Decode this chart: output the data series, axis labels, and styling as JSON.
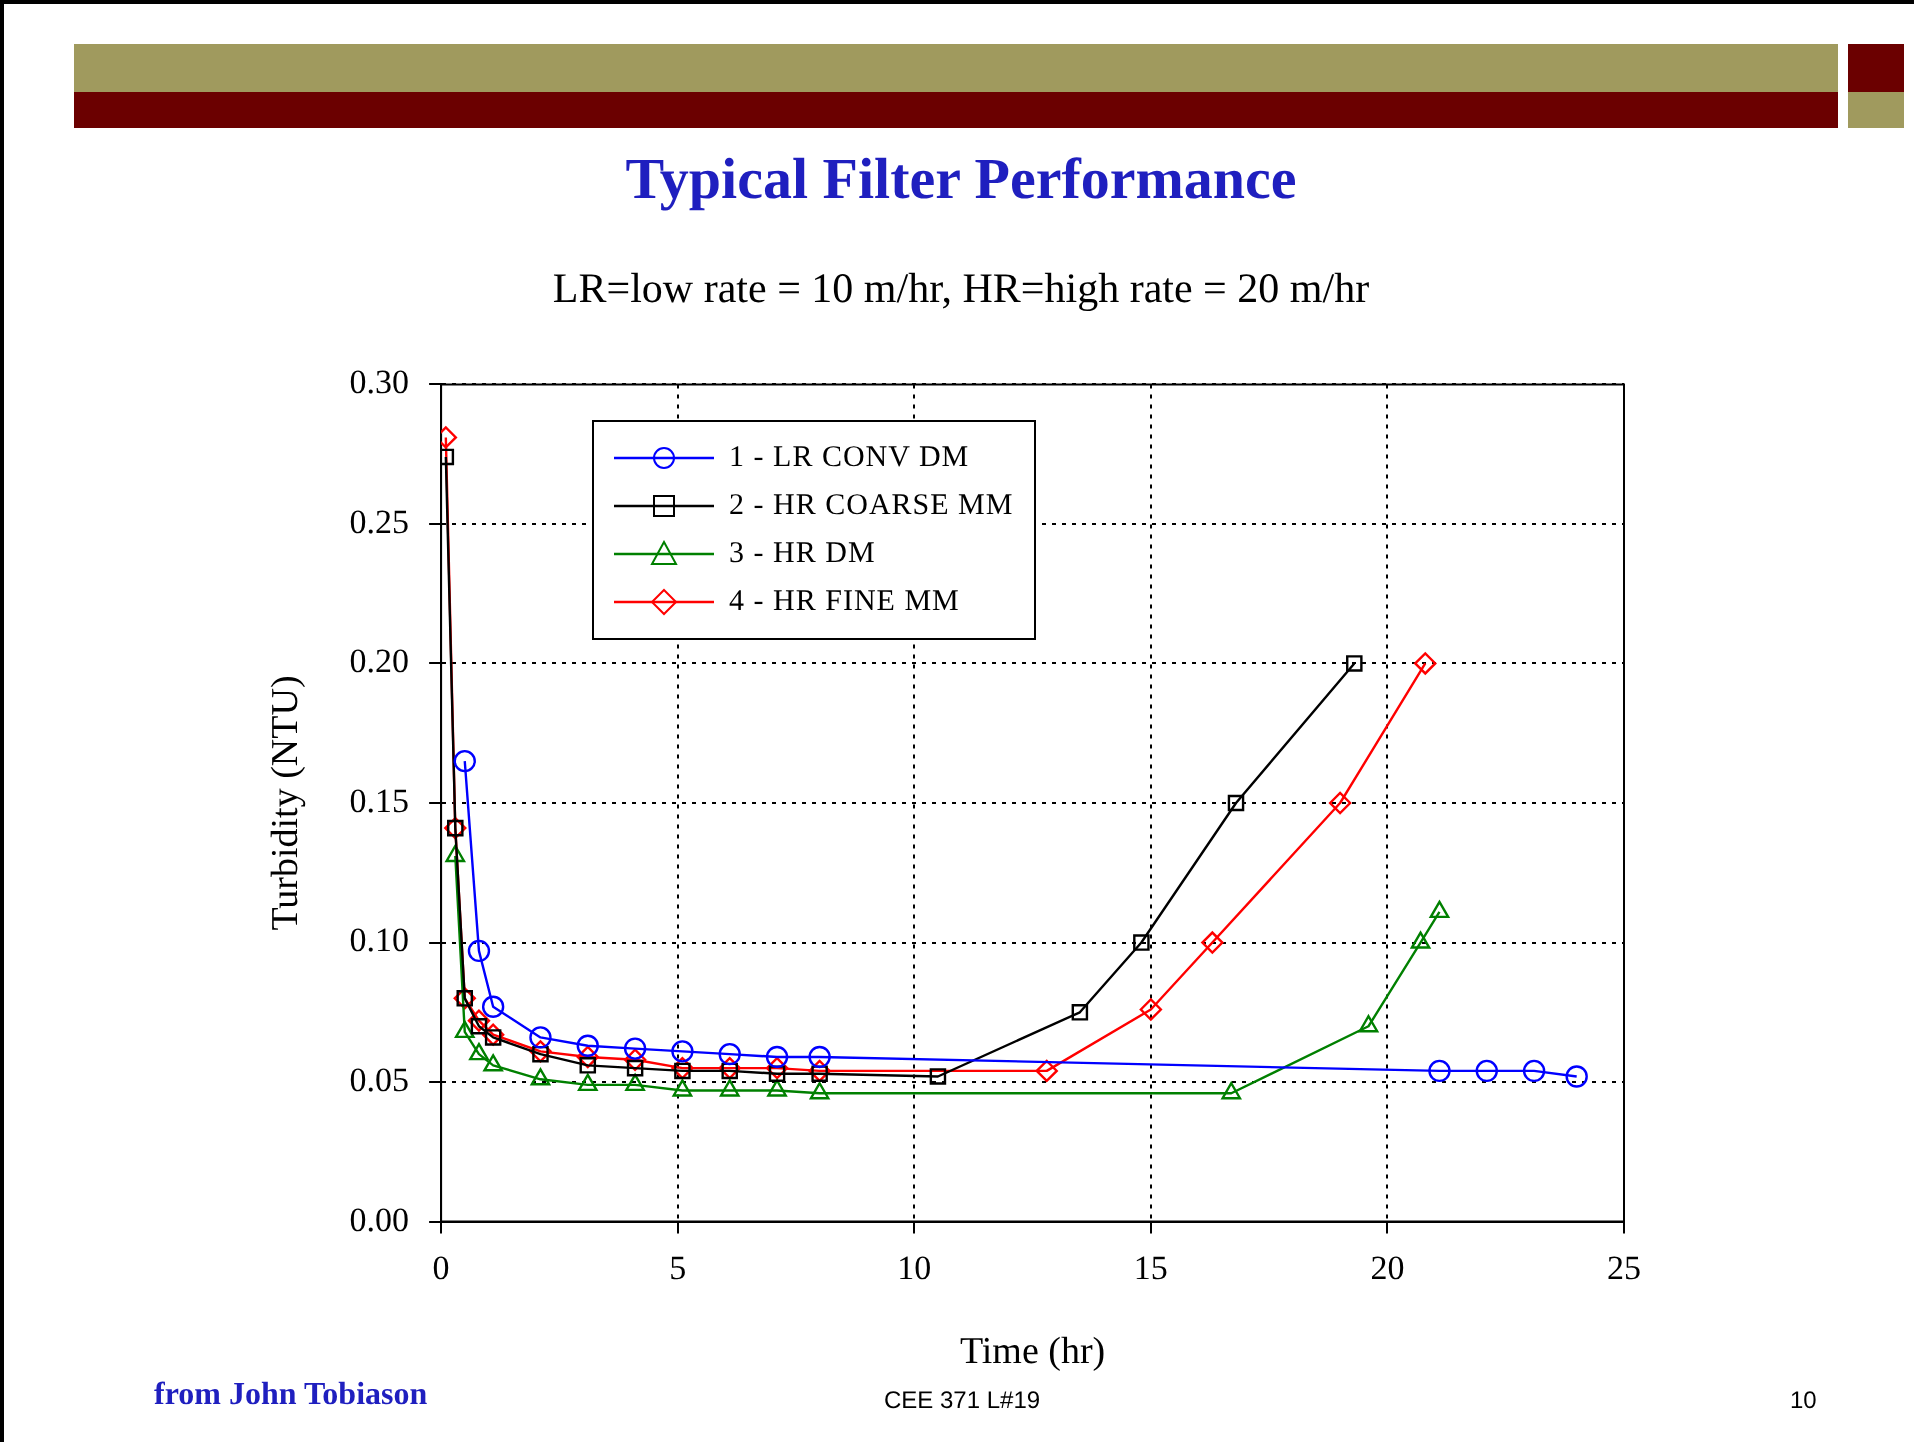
{
  "chart_data": {
    "type": "line",
    "title": "Typical Filter Performance",
    "subtitle": "LR=low rate = 10 m/hr,  HR=high rate = 20 m/hr",
    "xlabel": "Time (hr)",
    "ylabel": "Turbidity (NTU)",
    "annotations": [
      "from John Tobiason",
      "CEE 371 L#19",
      "10"
    ],
    "xlim": [
      0,
      25
    ],
    "xticks": [
      0,
      5,
      10,
      15,
      20,
      25
    ],
    "ylim": [
      0,
      0.3
    ],
    "yticks": [
      {
        "value": 0,
        "label": "0.00"
      },
      {
        "value": 0.05,
        "label": "0.05"
      },
      {
        "value": 0.1,
        "label": "0.10"
      },
      {
        "value": 0.15,
        "label": "0.15"
      },
      {
        "value": 0.2,
        "label": "0.20"
      },
      {
        "value": 0.25,
        "label": "0.25"
      },
      {
        "value": 0.3,
        "label": "0.30"
      }
    ],
    "grid": true,
    "legend": "top left",
    "line_style": "solid",
    "series": [
      {
        "name": "1 - LR CONV DM",
        "color": "#0000ff",
        "marker": "circle",
        "x": [
          0.5,
          0.8,
          1.1,
          2.1,
          3.1,
          4.1,
          5.1,
          6.1,
          7.1,
          8.0,
          21.1,
          22.1,
          23.1,
          24.0
        ],
        "values": [
          0.165,
          0.097,
          0.077,
          0.066,
          0.063,
          0.062,
          0.061,
          0.06,
          0.059,
          0.059,
          0.054,
          0.054,
          0.054,
          0.052
        ]
      },
      {
        "name": "2 - HR COARSE MM",
        "color": "#000000",
        "marker": "square",
        "x": [
          0.1,
          0.3,
          0.5,
          0.8,
          1.1,
          2.1,
          3.1,
          4.1,
          5.1,
          6.1,
          7.1,
          8.0,
          10.5,
          13.5,
          14.8,
          16.8,
          19.3
        ],
        "values": [
          0.274,
          0.141,
          0.08,
          0.07,
          0.066,
          0.06,
          0.056,
          0.055,
          0.054,
          0.054,
          0.053,
          0.053,
          0.052,
          0.075,
          0.1,
          0.15,
          0.2
        ]
      },
      {
        "name": "3 - HR DM",
        "color": "#008000",
        "marker": "triangle",
        "x": [
          0.3,
          0.5,
          0.8,
          1.1,
          2.1,
          3.1,
          4.1,
          5.1,
          6.1,
          7.1,
          8.0,
          16.7,
          19.6,
          20.7,
          21.1
        ],
        "values": [
          0.131,
          0.068,
          0.06,
          0.056,
          0.051,
          0.049,
          0.049,
          0.047,
          0.047,
          0.047,
          0.046,
          0.046,
          0.07,
          0.1,
          0.111
        ]
      },
      {
        "name": "4 - HR FINE MM",
        "color": "#ff0000",
        "marker": "diamond",
        "x": [
          0.1,
          0.3,
          0.5,
          0.8,
          1.1,
          2.1,
          3.1,
          4.1,
          5.1,
          6.1,
          7.1,
          8.0,
          12.8,
          15.0,
          16.3,
          19.0,
          20.8
        ],
        "values": [
          0.281,
          0.141,
          0.08,
          0.072,
          0.067,
          0.061,
          0.059,
          0.058,
          0.055,
          0.055,
          0.055,
          0.054,
          0.054,
          0.076,
          0.1,
          0.15,
          0.2
        ]
      }
    ]
  }
}
